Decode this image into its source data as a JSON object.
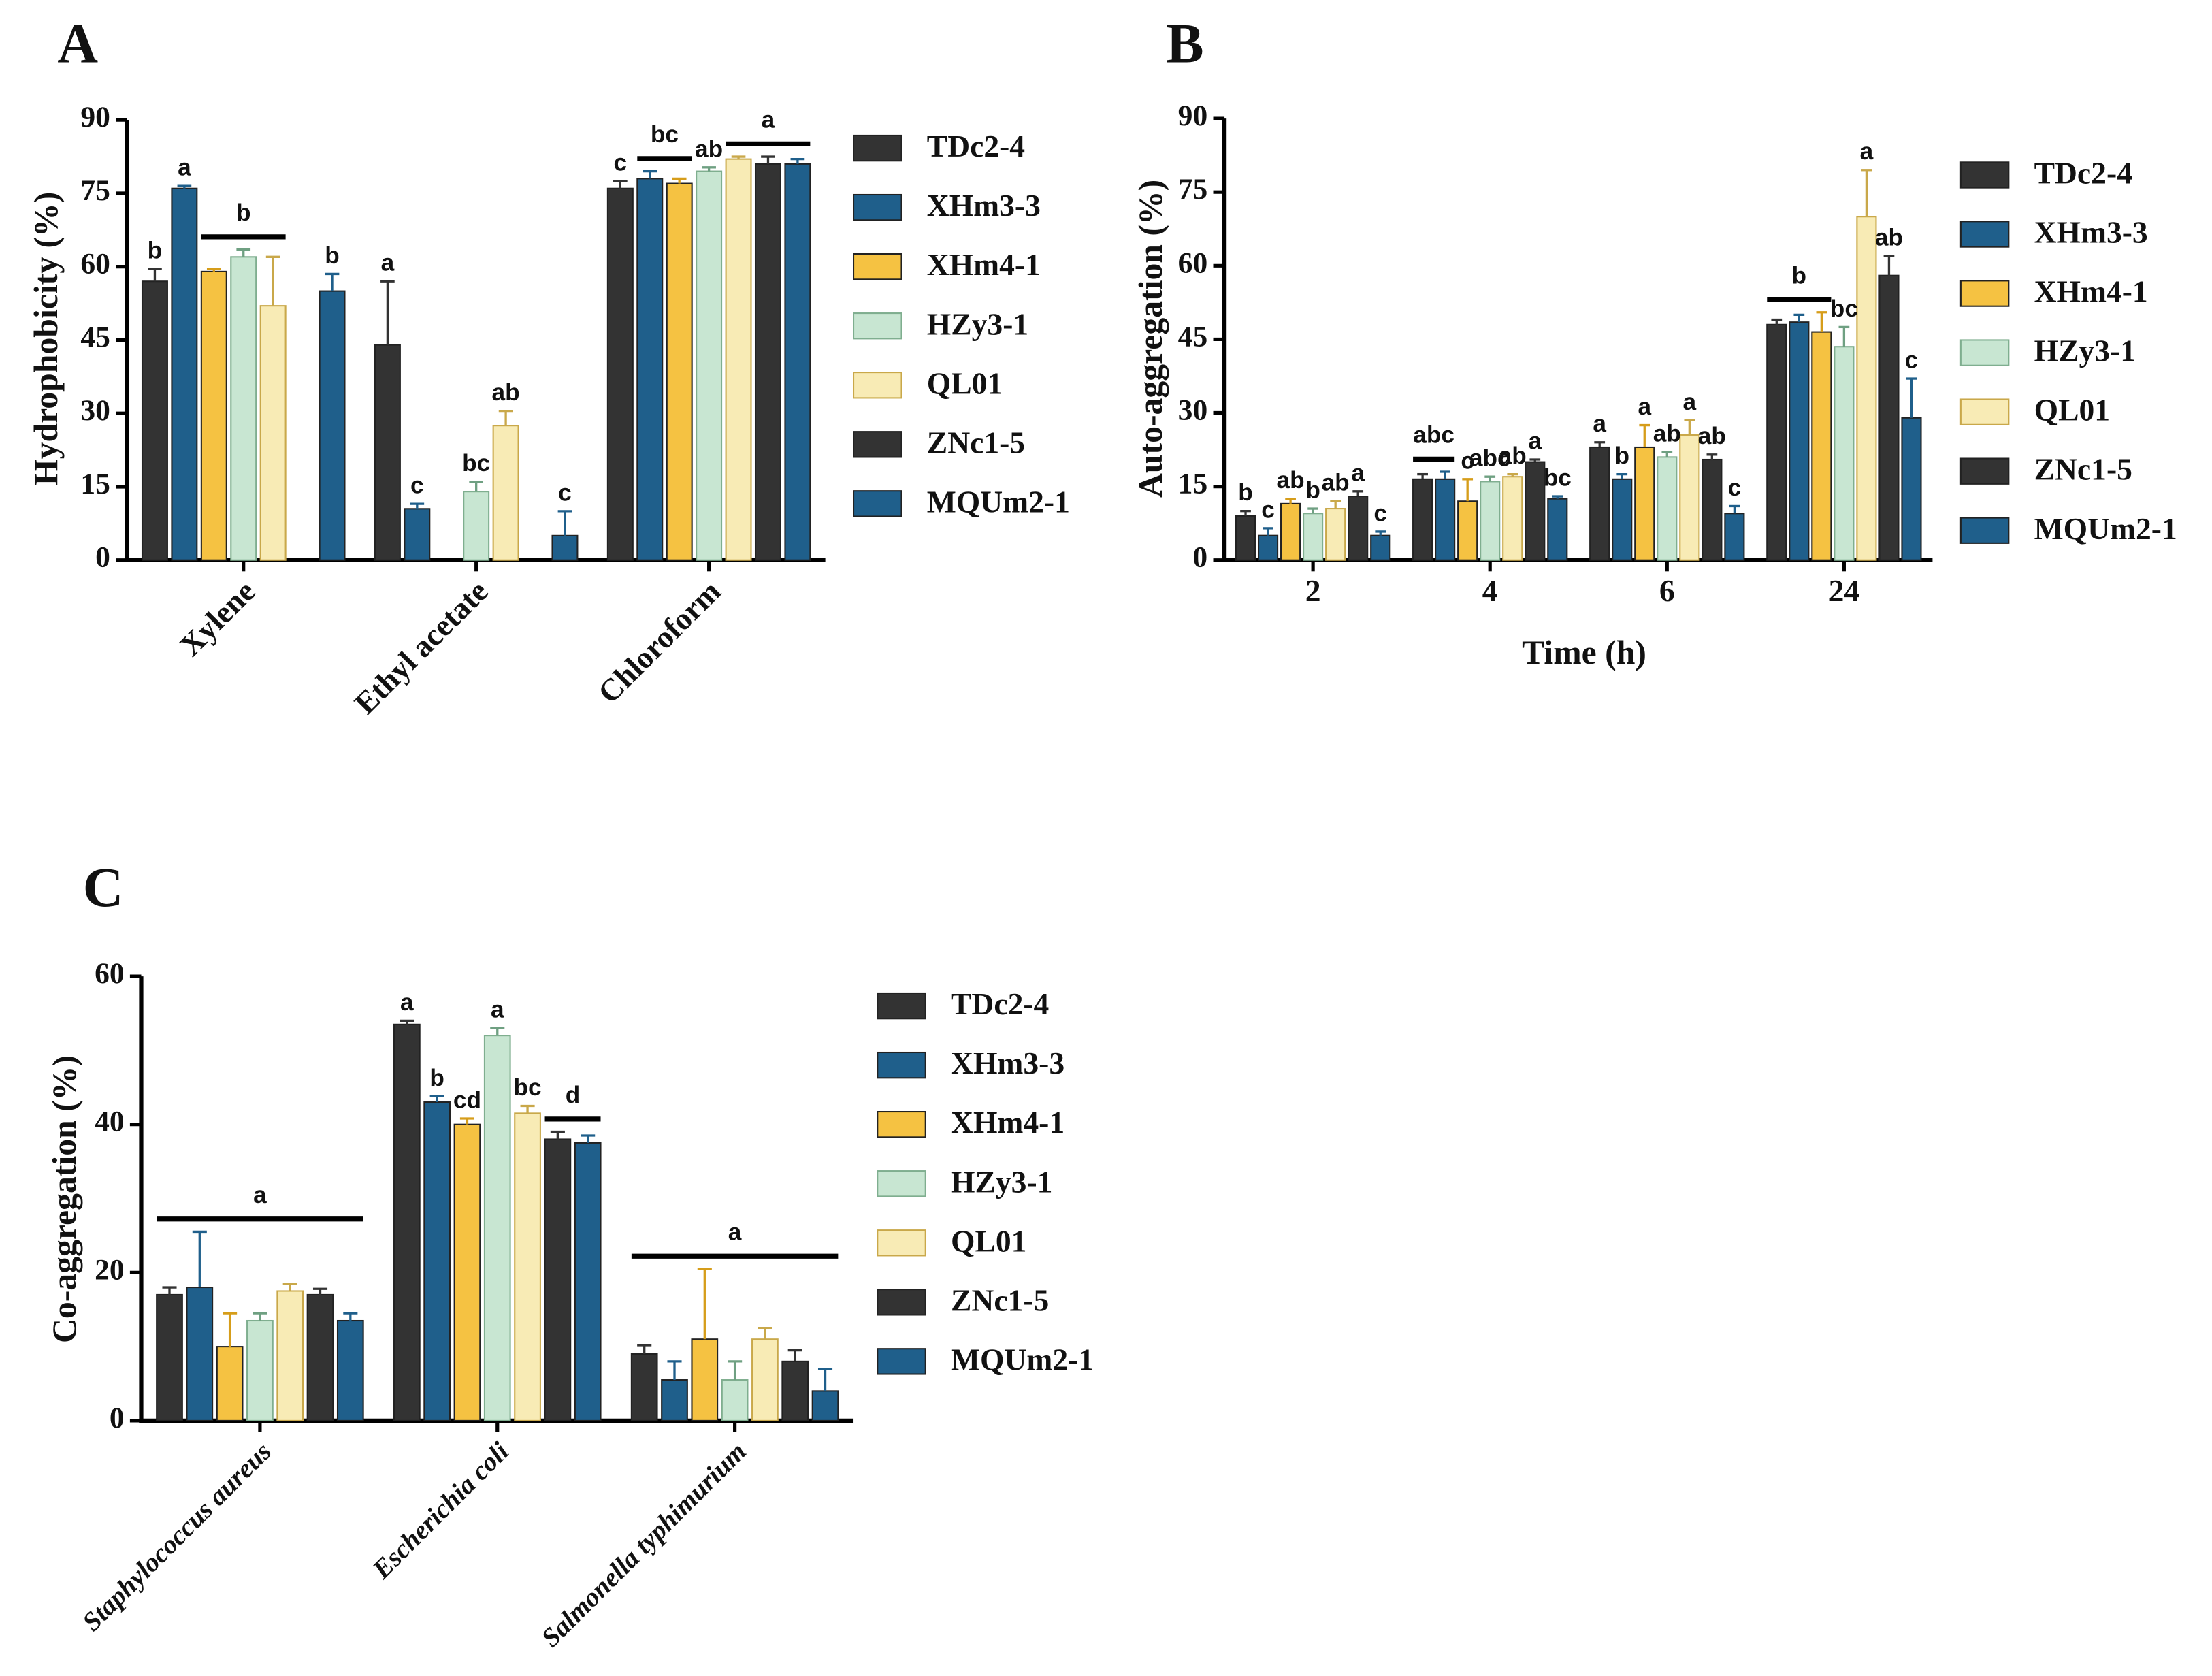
{
  "chart_data": [
    {
      "type": "bar",
      "panel": "A",
      "y_label": "Hydrophobicity (%)",
      "categories": [
        "Xylene",
        "Ethyl acetate",
        "Chloroform"
      ],
      "ylim": [
        0,
        90
      ],
      "yticks": [
        0,
        15,
        30,
        45,
        60,
        75,
        90
      ],
      "series": [
        {
          "name": "TDc2-4",
          "color": "#333333",
          "values": [
            57,
            44,
            76
          ],
          "errors": [
            2.5,
            13,
            1.5
          ]
        },
        {
          "name": "XHm3-3",
          "color": "#1f5f8b",
          "values": [
            76,
            10.5,
            78
          ],
          "errors": [
            0.5,
            1,
            1.5
          ]
        },
        {
          "name": "XHm4-1",
          "color": "#f5c242",
          "values": [
            59,
            null,
            77
          ],
          "errors": [
            0.5,
            null,
            1
          ]
        },
        {
          "name": "HZy3-1",
          "color": "#c8e6d2",
          "values": [
            62,
            14,
            79.5
          ],
          "errors": [
            1.5,
            2,
            0.8
          ]
        },
        {
          "name": "QL01",
          "color": "#f8ebb5",
          "values": [
            52,
            27.5,
            82
          ],
          "errors": [
            10,
            3,
            0.5
          ]
        },
        {
          "name": "ZNc1-5",
          "color": "#333333",
          "values": [
            null,
            null,
            81
          ],
          "errors": [
            null,
            null,
            1.5
          ]
        },
        {
          "name": "MQUm2-1",
          "color": "#1f5f8b",
          "values": [
            55,
            5,
            81
          ],
          "errors": [
            3.5,
            5,
            1
          ]
        }
      ],
      "annotations": [
        {
          "label": "b",
          "category": 0,
          "from": 0,
          "to": 0
        },
        {
          "label": "a",
          "category": 0,
          "from": 1,
          "to": 1
        },
        {
          "label": "b",
          "category": 0,
          "from": 2,
          "to": 4
        },
        {
          "label": "b",
          "category": 0,
          "from": 6,
          "to": 6
        },
        {
          "label": "a",
          "category": 1,
          "from": 0,
          "to": 0
        },
        {
          "label": "c",
          "category": 1,
          "from": 1,
          "to": 1
        },
        {
          "label": "bc",
          "category": 1,
          "from": 3,
          "to": 3
        },
        {
          "label": "ab",
          "category": 1,
          "from": 4,
          "to": 4
        },
        {
          "label": "c",
          "category": 1,
          "from": 6,
          "to": 6
        },
        {
          "label": "c",
          "category": 2,
          "from": 0,
          "to": 0
        },
        {
          "label": "bc",
          "category": 2,
          "from": 1,
          "to": 2
        },
        {
          "label": "ab",
          "category": 2,
          "from": 3,
          "to": 3
        },
        {
          "label": "a",
          "category": 2,
          "from": 4,
          "to": 6
        }
      ]
    },
    {
      "type": "bar",
      "panel": "B",
      "y_label": "Auto-aggregation (%)",
      "x_label": "Time (h)",
      "categories": [
        "2",
        "4",
        "6",
        "24"
      ],
      "ylim": [
        0,
        90
      ],
      "yticks": [
        0,
        15,
        30,
        45,
        60,
        75,
        90
      ],
      "series": [
        {
          "name": "TDc2-4",
          "color": "#333333",
          "values": [
            9,
            16.5,
            23,
            48
          ],
          "errors": [
            1,
            1,
            1,
            1
          ]
        },
        {
          "name": "XHm3-3",
          "color": "#1f5f8b",
          "values": [
            5,
            16.5,
            16.5,
            48.5
          ],
          "errors": [
            1.5,
            1.5,
            1,
            1.5
          ]
        },
        {
          "name": "XHm4-1",
          "color": "#f5c242",
          "values": [
            11.5,
            12,
            23,
            46.5
          ],
          "errors": [
            1,
            4.5,
            4.5,
            4
          ]
        },
        {
          "name": "HZy3-1",
          "color": "#c8e6d2",
          "values": [
            9.5,
            16,
            21,
            43.5
          ],
          "errors": [
            1,
            1,
            1,
            4
          ]
        },
        {
          "name": "QL01",
          "color": "#f8ebb5",
          "values": [
            10.5,
            17,
            25.5,
            70
          ],
          "errors": [
            1.5,
            0.5,
            3,
            9.5
          ]
        },
        {
          "name": "ZNc1-5",
          "color": "#333333",
          "values": [
            13,
            20,
            20.5,
            58
          ],
          "errors": [
            1,
            0.5,
            1,
            4
          ]
        },
        {
          "name": "MQUm2-1",
          "color": "#1f5f8b",
          "values": [
            5,
            12.5,
            9.5,
            29
          ],
          "errors": [
            0.8,
            0.5,
            1.5,
            8
          ]
        }
      ],
      "annotations": [
        {
          "label": "b",
          "category": 0,
          "from": 0,
          "to": 0
        },
        {
          "label": "c",
          "category": 0,
          "from": 1,
          "to": 1
        },
        {
          "label": "ab",
          "category": 0,
          "from": 2,
          "to": 2
        },
        {
          "label": "b",
          "category": 0,
          "from": 3,
          "to": 3
        },
        {
          "label": "ab",
          "category": 0,
          "from": 4,
          "to": 4
        },
        {
          "label": "a",
          "category": 0,
          "from": 5,
          "to": 5
        },
        {
          "label": "c",
          "category": 0,
          "from": 6,
          "to": 6
        },
        {
          "label": "abc",
          "category": 1,
          "from": 0,
          "to": 1
        },
        {
          "label": "c",
          "category": 1,
          "from": 2,
          "to": 2
        },
        {
          "label": "abc",
          "category": 1,
          "from": 3,
          "to": 3
        },
        {
          "label": "ab",
          "category": 1,
          "from": 4,
          "to": 4
        },
        {
          "label": "a",
          "category": 1,
          "from": 5,
          "to": 5
        },
        {
          "label": "bc",
          "category": 1,
          "from": 6,
          "to": 6
        },
        {
          "label": "a",
          "category": 2,
          "from": 0,
          "to": 0
        },
        {
          "label": "b",
          "category": 2,
          "from": 1,
          "to": 1
        },
        {
          "label": "a",
          "category": 2,
          "from": 2,
          "to": 2
        },
        {
          "label": "ab",
          "category": 2,
          "from": 3,
          "to": 3
        },
        {
          "label": "a",
          "category": 2,
          "from": 4,
          "to": 4
        },
        {
          "label": "ab",
          "category": 2,
          "from": 5,
          "to": 5
        },
        {
          "label": "c",
          "category": 2,
          "from": 6,
          "to": 6
        },
        {
          "label": "b",
          "category": 3,
          "from": 0,
          "to": 2
        },
        {
          "label": "bc",
          "category": 3,
          "from": 3,
          "to": 3
        },
        {
          "label": "a",
          "category": 3,
          "from": 4,
          "to": 4
        },
        {
          "label": "ab",
          "category": 3,
          "from": 5,
          "to": 5
        },
        {
          "label": "c",
          "category": 3,
          "from": 6,
          "to": 6
        }
      ]
    },
    {
      "type": "bar",
      "panel": "C",
      "y_label": "Co-aggregation (%)",
      "categories": [
        "Staphylococcus aureus",
        "Escherichia coli",
        "Salmonella typhimurium"
      ],
      "ylim": [
        0,
        60
      ],
      "yticks": [
        0,
        20,
        40,
        60
      ],
      "series": [
        {
          "name": "TDc2-4",
          "color": "#333333",
          "values": [
            17,
            53.5,
            9
          ],
          "errors": [
            1,
            0.5,
            1.2
          ]
        },
        {
          "name": "XHm3-3",
          "color": "#1f5f8b",
          "values": [
            18,
            43,
            5.5
          ],
          "errors": [
            7.5,
            0.8,
            2.5
          ]
        },
        {
          "name": "XHm4-1",
          "color": "#f5c242",
          "values": [
            10,
            40,
            11
          ],
          "errors": [
            4.5,
            0.8,
            9.5
          ]
        },
        {
          "name": "HZy3-1",
          "color": "#c8e6d2",
          "values": [
            13.5,
            52,
            5.5
          ],
          "errors": [
            1,
            1,
            2.5
          ]
        },
        {
          "name": "QL01",
          "color": "#f8ebb5",
          "values": [
            17.5,
            41.5,
            11
          ],
          "errors": [
            1,
            1,
            1.5
          ]
        },
        {
          "name": "ZNc1-5",
          "color": "#333333",
          "values": [
            17,
            38,
            8
          ],
          "errors": [
            0.8,
            1,
            1.5
          ]
        },
        {
          "name": "MQUm2-1",
          "color": "#1f5f8b",
          "values": [
            13.5,
            37.5,
            4
          ],
          "errors": [
            1,
            1,
            3
          ]
        }
      ],
      "annotations": [
        {
          "label": "a",
          "category": 0,
          "from": 0,
          "to": 6
        },
        {
          "label": "a",
          "category": 1,
          "from": 0,
          "to": 0
        },
        {
          "label": "b",
          "category": 1,
          "from": 1,
          "to": 1
        },
        {
          "label": "cd",
          "category": 1,
          "from": 2,
          "to": 2
        },
        {
          "label": "a",
          "category": 1,
          "from": 3,
          "to": 3
        },
        {
          "label": "bc",
          "category": 1,
          "from": 4,
          "to": 4
        },
        {
          "label": "d",
          "category": 1,
          "from": 5,
          "to": 6
        },
        {
          "label": "a",
          "category": 2,
          "from": 0,
          "to": 6
        }
      ]
    }
  ]
}
